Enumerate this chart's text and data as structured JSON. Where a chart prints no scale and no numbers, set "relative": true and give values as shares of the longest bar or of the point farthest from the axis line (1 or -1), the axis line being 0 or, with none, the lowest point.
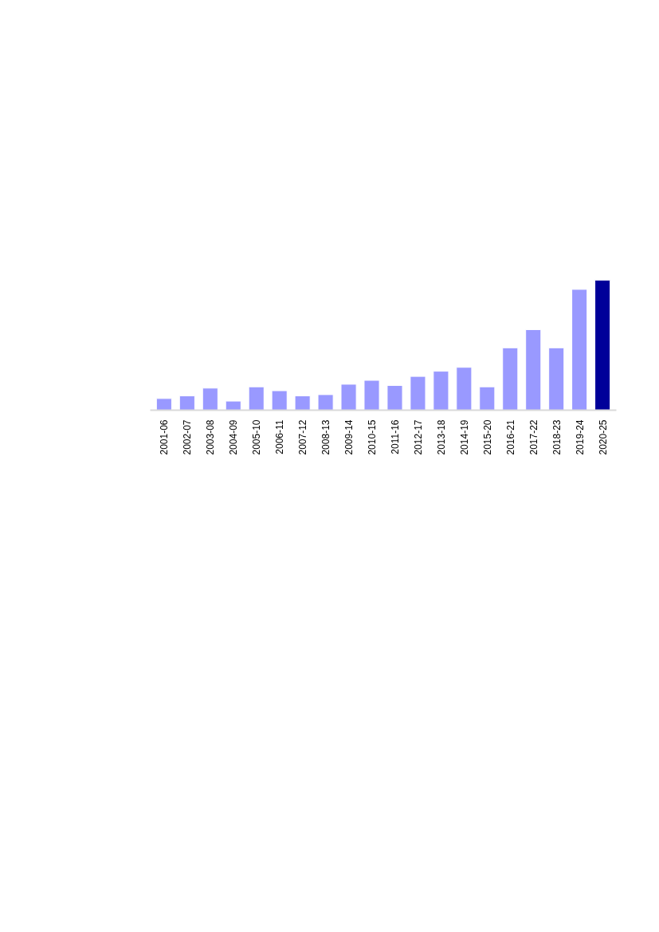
{
  "chart_data": {
    "type": "bar",
    "relative": true,
    "categories": [
      "2001-06",
      "2002-07",
      "2003-08",
      "2004-09",
      "2005-10",
      "2006-11",
      "2007-12",
      "2008-13",
      "2009-14",
      "2010-15",
      "2011-16",
      "2012-17",
      "2013-18",
      "2014-19",
      "2015-20",
      "2016-21",
      "2017-22",
      "2018-23",
      "2019-24",
      "2020-25"
    ],
    "values": [
      0.09,
      0.11,
      0.17,
      0.07,
      0.18,
      0.15,
      0.11,
      0.12,
      0.2,
      0.23,
      0.19,
      0.26,
      0.3,
      0.33,
      0.18,
      0.48,
      0.62,
      0.48,
      0.93,
      1
    ],
    "colors": [
      "#9999ff",
      "#9999ff",
      "#9999ff",
      "#9999ff",
      "#9999ff",
      "#9999ff",
      "#9999ff",
      "#9999ff",
      "#9999ff",
      "#9999ff",
      "#9999ff",
      "#9999ff",
      "#9999ff",
      "#9999ff",
      "#9999ff",
      "#9999ff",
      "#9999ff",
      "#9999ff",
      "#9999ff",
      "#000099"
    ]
  }
}
